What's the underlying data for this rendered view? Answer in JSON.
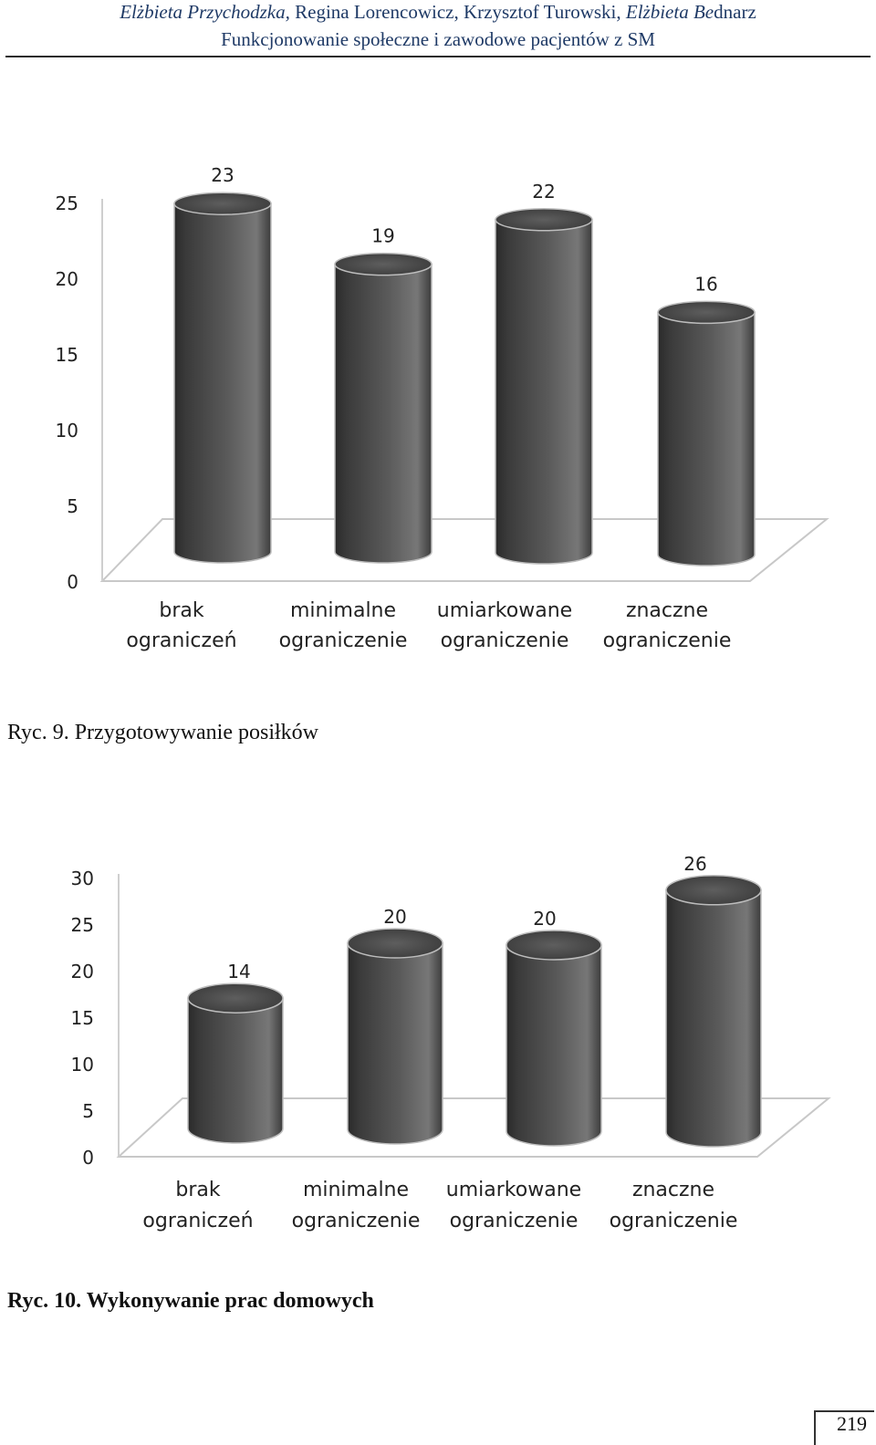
{
  "header": {
    "authors_italic_1": "Elżbieta Przychodzka,",
    "authors_rest": " Regina Lorencowicz, Krzysztof Turowski, ",
    "authors_italic_2": "Elżbieta Be",
    "authors_tail": "dnarz",
    "journal": "Funkcjonowanie społeczne i zawodowe pacjentów z SM"
  },
  "figures": [
    {
      "caption": "Ryc. 9. Przygotowywanie posiłków"
    },
    {
      "caption": "Ryc. 10. Wykonywanie prac domowych"
    }
  ],
  "page_number": "219",
  "colors": {
    "header_text": "#1f3a66",
    "bar": "#4a4a4a"
  },
  "chart_data": [
    {
      "type": "bar",
      "style": "3d-cylinder",
      "categories": [
        [
          "brak",
          "ograniczeń"
        ],
        [
          "minimalne",
          "ograniczenie"
        ],
        [
          "umiarkowane",
          "ograniczenie"
        ],
        [
          "znaczne",
          "ograniczenie"
        ]
      ],
      "values": [
        23,
        19,
        22,
        16
      ],
      "data_labels": [
        "23",
        "19",
        "22",
        "16"
      ],
      "yticks": [
        "0",
        "5",
        "10",
        "15",
        "20",
        "25"
      ],
      "ylim": [
        0,
        25
      ],
      "grid": false
    },
    {
      "type": "bar",
      "style": "3d-cylinder",
      "categories": [
        [
          "brak",
          "ograniczeń"
        ],
        [
          "minimalne",
          "ograniczenie"
        ],
        [
          "umiarkowane",
          "ograniczenie"
        ],
        [
          "znaczne",
          "ograniczenie"
        ]
      ],
      "values": [
        14,
        20,
        20,
        26
      ],
      "data_labels": [
        "14",
        "20",
        "20",
        "26"
      ],
      "yticks": [
        "0",
        "5",
        "10",
        "15",
        "20",
        "25",
        "30"
      ],
      "ylim": [
        0,
        30
      ],
      "grid": false
    }
  ]
}
